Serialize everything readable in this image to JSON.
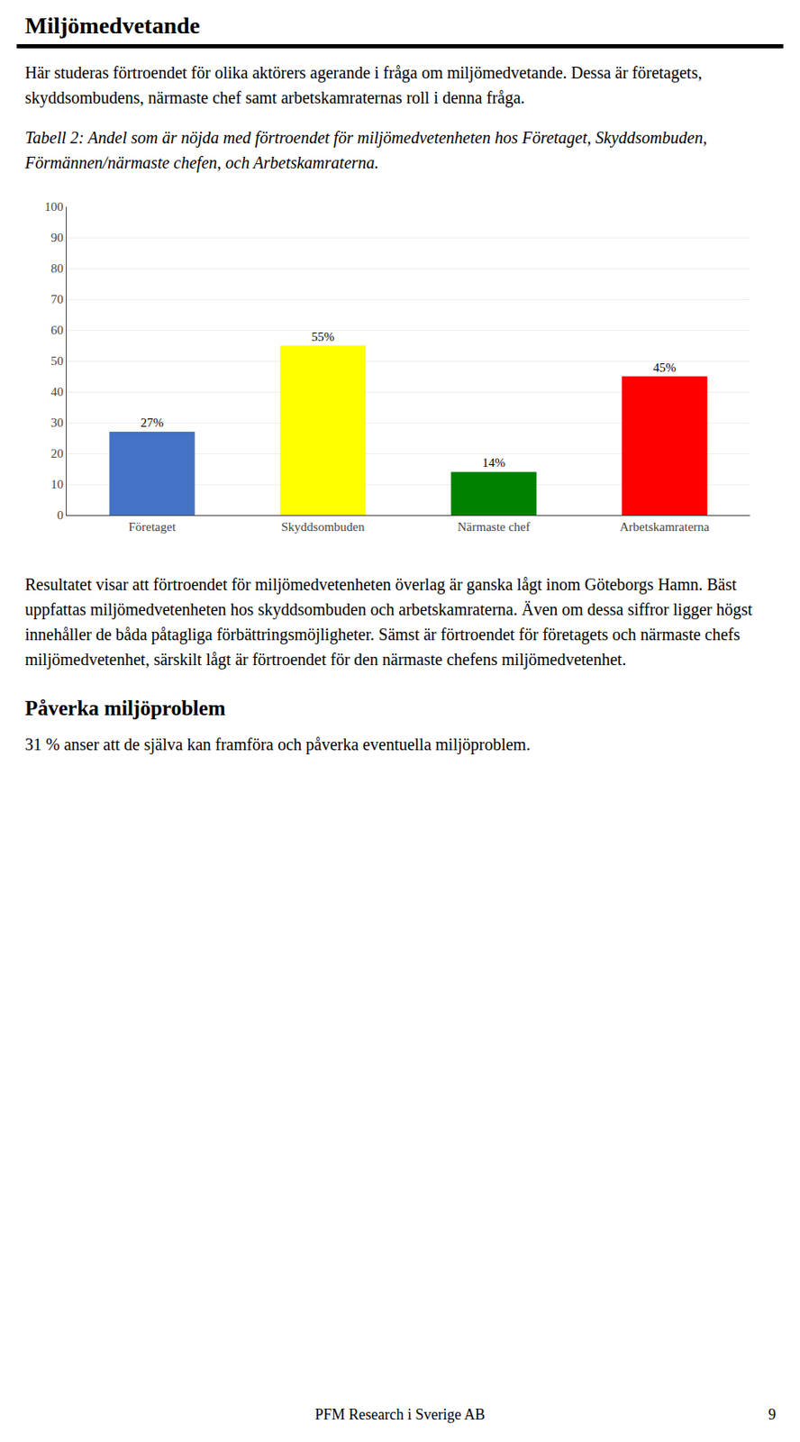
{
  "page_title": "Miljömedvetande",
  "intro_text": "Här studeras förtroendet för olika aktörers agerande i fråga om miljömedvetande. Dessa är företagets, skyddsombudens, närmaste chef samt arbetskamraternas roll i denna fråga.",
  "result_text": "Resultatet visar att förtroendet för miljömedvetenheten överlag är ganska lågt inom Göteborgs Hamn. Bäst uppfattas miljömedvetenheten hos skyddsombuden och arbetskamraterna. Även om dessa siffror ligger högst innehåller de båda påtagliga förbättringsmöjligheter. Sämst är förtroendet för företagets och närmaste chefs miljömedvetenhet, särskilt lågt är förtroendet för den närmaste chefens miljömedvetenhet.",
  "section2_title": "Påverka miljöproblem",
  "section2_text": "31 % anser att de själva kan framföra och påverka eventuella miljöproblem.",
  "footer_text": "PFM Research i Sverige AB",
  "footer_page": "9",
  "chart_data": {
    "type": "bar",
    "title": "Tabell 2: Andel som är nöjda med förtroendet för miljömedvetenheten hos Företaget, Skyddsombuden, Förmännen/närmaste chefen, och Arbetskamraterna.",
    "categories": [
      "Företaget",
      "Skyddsombuden",
      "Närmaste chef",
      "Arbetskamraterna"
    ],
    "values": [
      27,
      55,
      14,
      45
    ],
    "value_labels": [
      "27%",
      "55%",
      "14%",
      "45%"
    ],
    "data_labels": true,
    "colors": [
      "#4472c4",
      "#ffff00",
      "#008000",
      "#ff0000"
    ],
    "ylim": [
      0,
      100
    ],
    "yticks": [
      0,
      10,
      20,
      30,
      40,
      50,
      60,
      70,
      80,
      90,
      100
    ],
    "grid": true
  }
}
